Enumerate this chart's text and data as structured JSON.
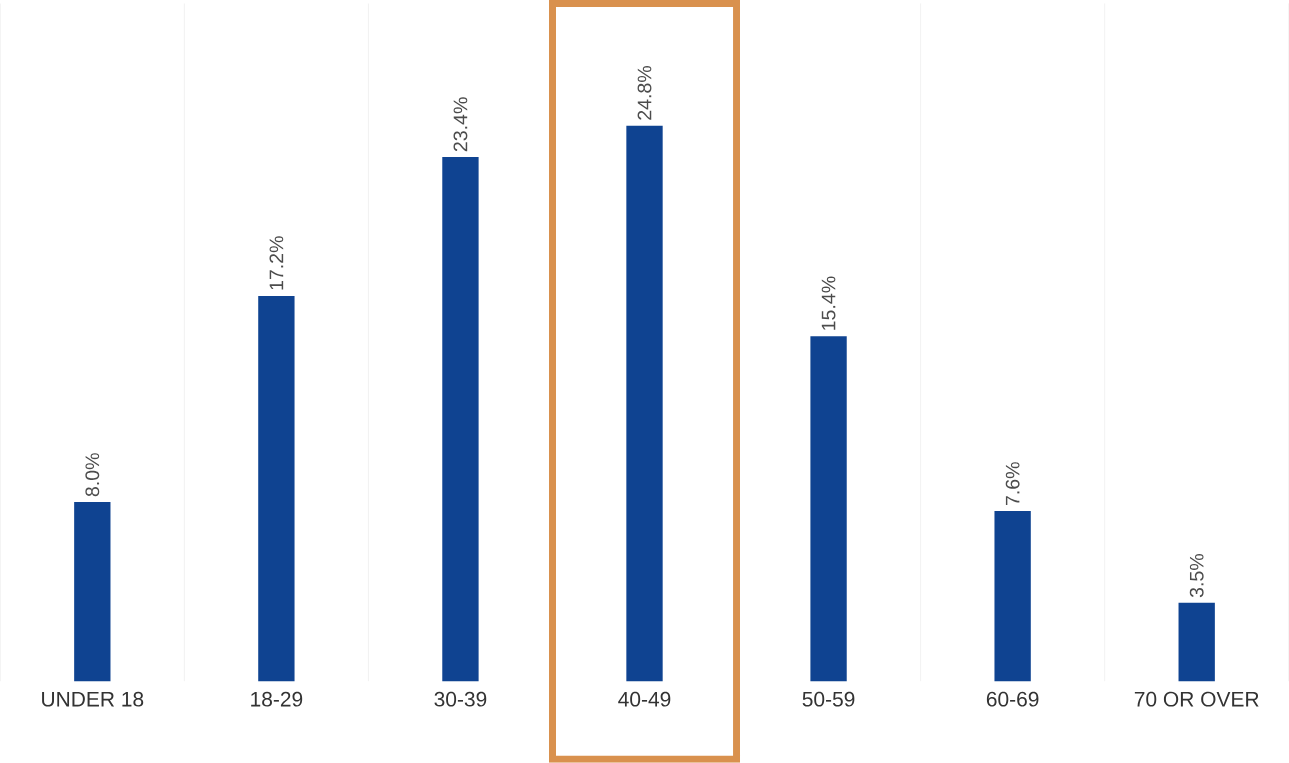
{
  "chart_data": {
    "type": "bar",
    "categories": [
      "UNDER 18",
      "18-29",
      "30-39",
      "40-49",
      "50-59",
      "60-69",
      "70 OR OVER"
    ],
    "values": [
      8.0,
      17.2,
      23.4,
      24.8,
      15.4,
      7.6,
      3.5
    ],
    "value_labels": [
      "8.0%",
      "17.2%",
      "23.4%",
      "24.8%",
      "15.4%",
      "7.6%",
      "3.5%"
    ],
    "color": "#0f4391",
    "grid": "x"
  }
}
